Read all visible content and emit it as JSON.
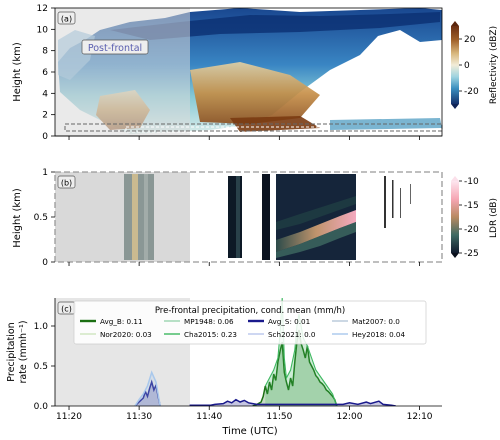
{
  "colors": {
    "shade": "#e6e6e6",
    "avg_b": "#1b6e12",
    "avg_s": "#1a1a8c",
    "mp1948": "#9ad4b0",
    "cha2015": "#3db860",
    "sch2021": "#b9c6ec",
    "mat2007": "#b7c8d8",
    "nor2020": "#cfe6bf",
    "hey2018": "#a9c8ec"
  },
  "chart_data": [
    {
      "panel": "(a)",
      "type": "heatmap",
      "ylabel": "Height (km)",
      "ylim": [
        0,
        12
      ],
      "yticks": [
        0,
        2,
        4,
        6,
        8,
        10,
        12
      ],
      "annotation": "Post-frontal",
      "colorbar": {
        "label": "Reflectivity (dBZ)",
        "range": [
          -30,
          30
        ],
        "ticks": [
          20,
          0,
          -20
        ],
        "colormap": "blue-to-brown"
      }
    },
    {
      "panel": "(b)",
      "type": "heatmap",
      "ylabel": "Height (km)",
      "ylim": [
        0,
        1
      ],
      "yticks": [
        0,
        0.5,
        1
      ],
      "colorbar": {
        "label": "LDR (dB)",
        "range": [
          -25,
          -10
        ],
        "ticks": [
          -10,
          -15,
          -20,
          -25
        ],
        "colormap": "dark-to-pink"
      }
    },
    {
      "panel": "(c)",
      "type": "line",
      "ylabel": "Precipitation rate (mmh⁻¹)",
      "ylabel_lines": [
        "Precipitation",
        "rate (mmh⁻¹)"
      ],
      "ylim": [
        0,
        1.35
      ],
      "yticks": [
        0.0,
        0.5,
        1.0
      ],
      "xlabel": "Time (UTC)",
      "xticks": [
        "11:20",
        "11:30",
        "11:40",
        "11:50",
        "12:00",
        "12:10"
      ],
      "legend_title": "Pre-frontal precipitation, cond. mean (mm/h)",
      "legend_items": [
        {
          "label": "Avg_B: 0.11",
          "color_key": "avg_b"
        },
        {
          "label": "MP1948: 0.06",
          "color_key": "mp1948"
        },
        {
          "label": "Avg_S: 0.01",
          "color_key": "avg_s"
        },
        {
          "label": "Mat2007: 0.0",
          "color_key": "mat2007"
        },
        {
          "label": "Nor2020: 0.03",
          "color_key": "nor2020"
        },
        {
          "label": "Cha2015: 0.23",
          "color_key": "cha2015"
        },
        {
          "label": "Sch2021: 0.0",
          "color_key": "sch2021"
        },
        {
          "label": "Hey2018: 0.04",
          "color_key": "hey2018"
        }
      ],
      "series": [
        {
          "name": "Avg_B",
          "color_key": "avg_b",
          "x": [
            11.77,
            11.78,
            11.79,
            11.795,
            11.8,
            11.805,
            11.81,
            11.815,
            11.82,
            11.825,
            11.83,
            11.835,
            11.84,
            11.845,
            11.85,
            11.855,
            11.86,
            11.865,
            11.87,
            11.875,
            11.88,
            11.885,
            11.89,
            11.895,
            11.9,
            11.905,
            11.91,
            11.915,
            11.92,
            11.925,
            11.93,
            11.935,
            11.94,
            11.945,
            11.95,
            11.955,
            11.96,
            11.965,
            11.97
          ],
          "y": [
            0.0,
            0.02,
            0.05,
            0.12,
            0.25,
            0.15,
            0.3,
            0.2,
            0.4,
            0.32,
            0.55,
            0.68,
            0.8,
            0.42,
            0.3,
            0.2,
            0.35,
            0.25,
            0.55,
            0.8,
            0.95,
            0.78,
            0.7,
            0.6,
            0.75,
            0.55,
            0.5,
            0.45,
            0.38,
            0.35,
            0.3,
            0.28,
            0.25,
            0.2,
            0.18,
            0.15,
            0.12,
            0.08,
            0.0
          ]
        },
        {
          "name": "Cha2015",
          "color_key": "cha2015",
          "x": [
            11.8,
            11.81,
            11.82,
            11.83,
            11.835,
            11.84,
            11.845,
            11.85,
            11.86,
            11.87,
            11.875,
            11.88,
            11.885,
            11.89,
            11.9,
            11.91,
            11.92,
            11.94,
            11.96,
            11.97
          ],
          "y": [
            0.25,
            0.35,
            0.45,
            0.6,
            0.9,
            1.35,
            0.6,
            0.35,
            0.45,
            0.7,
            1.0,
            1.15,
            1.0,
            0.85,
            0.75,
            0.6,
            0.45,
            0.3,
            0.15,
            0.0
          ]
        },
        {
          "name": "Avg_S",
          "color_key": "avg_s",
          "x": [
            11.49,
            11.5,
            11.51,
            11.515,
            11.52,
            11.525,
            11.53,
            11.535,
            11.54,
            11.545,
            11.55
          ],
          "y": [
            0.0,
            0.05,
            0.1,
            0.18,
            0.12,
            0.22,
            0.3,
            0.2,
            0.26,
            0.12,
            0.0
          ]
        },
        {
          "name": "Hey2018",
          "color_key": "hey2018",
          "x": [
            11.49,
            11.5,
            11.51,
            11.52,
            11.53,
            11.54,
            11.55
          ],
          "y": [
            0.0,
            0.08,
            0.15,
            0.25,
            0.42,
            0.3,
            0.0
          ]
        },
        {
          "name": "Avg_S (post-frontal)",
          "color_key": "avg_s",
          "x": [
            11.62,
            11.67,
            11.68,
            11.7,
            11.71,
            11.72,
            11.73,
            11.74,
            11.75,
            11.76,
            11.77,
            11.78,
            11.985,
            12.0,
            12.02,
            12.04,
            12.05,
            12.07,
            12.08,
            12.1,
            12.11
          ],
          "y": [
            0.01,
            0.01,
            0.02,
            0.03,
            0.06,
            0.04,
            0.08,
            0.05,
            0.07,
            0.04,
            0.03,
            0.02,
            0.02,
            0.04,
            0.02,
            0.05,
            0.03,
            0.06,
            0.02,
            0.01,
            0.0
          ]
        }
      ]
    }
  ]
}
